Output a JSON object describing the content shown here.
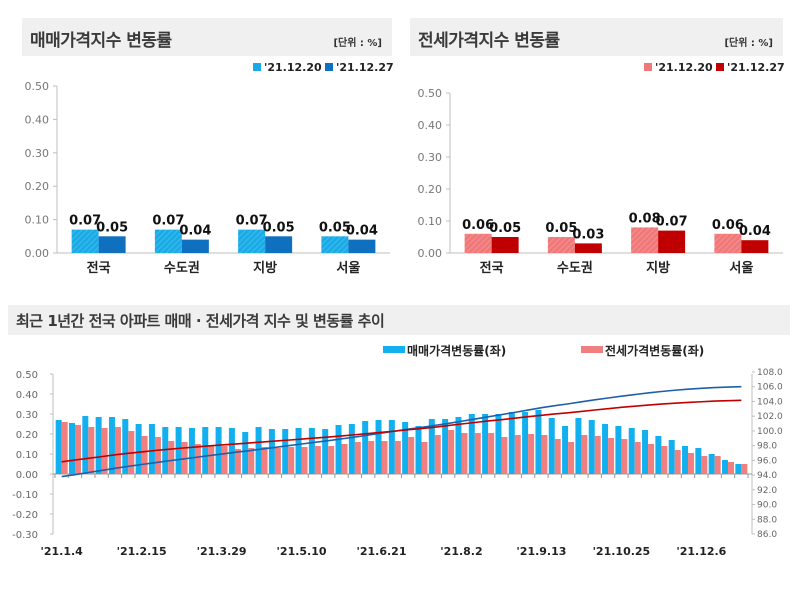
{
  "colors": {
    "sale_prev": "#1aabe6",
    "sale_curr": "#1070c0",
    "jeonse_prev": "#f07878",
    "jeonse_curr": "#c00000",
    "sale_bar": "#12b0ee",
    "jeonse_bar": "#f08080",
    "sale_index_line": "#1f5fa8",
    "jeonse_index_line": "#c00000"
  },
  "chart_data": [
    {
      "type": "bar",
      "title": "매매가격지수 변동률",
      "unit": "[단위 : %]",
      "categories": [
        "전국",
        "수도권",
        "지방",
        "서울"
      ],
      "series": [
        {
          "name": "'21.12.20",
          "values": [
            0.07,
            0.07,
            0.07,
            0.05
          ]
        },
        {
          "name": "'21.12.27",
          "values": [
            0.05,
            0.04,
            0.05,
            0.04
          ]
        }
      ],
      "ylim": [
        0,
        0.5
      ],
      "yticks": [
        "0.00",
        "0.10",
        "0.20",
        "0.30",
        "0.40",
        "0.50"
      ],
      "legend": "top-right",
      "grid": false
    },
    {
      "type": "bar",
      "title": "전세가격지수 변동률",
      "unit": "[단위 : %]",
      "categories": [
        "전국",
        "수도권",
        "지방",
        "서울"
      ],
      "series": [
        {
          "name": "'21.12.20",
          "values": [
            0.06,
            0.05,
            0.08,
            0.06
          ]
        },
        {
          "name": "'21.12.27",
          "values": [
            0.05,
            0.03,
            0.07,
            0.04
          ]
        }
      ],
      "ylim": [
        0,
        0.5
      ],
      "yticks": [
        "0.00",
        "0.10",
        "0.20",
        "0.30",
        "0.40",
        "0.50"
      ],
      "legend": "top-right",
      "grid": false
    },
    {
      "type": "bar+line",
      "title": "최근 1년간 전국 아파트 매매 · 전세가격 지수 및 변동률 추이",
      "xtick_labels": [
        "'21.1.4",
        "'21.2.15",
        "'21.3.29",
        "'21.5.10",
        "'21.6.21",
        "'21.8.2",
        "'21.9.13",
        "'21.10.25",
        "'21.12.6"
      ],
      "xtick_every_weeks": 6,
      "ylim_left": [
        -0.3,
        0.5
      ],
      "yticks_left": [
        "-0.30",
        "-0.20",
        "-0.10",
        "0.00",
        "0.10",
        "0.20",
        "0.30",
        "0.40",
        "0.50"
      ],
      "ylim_right": [
        86.0,
        108.0
      ],
      "yticks_right": [
        "86.0",
        "88.0",
        "90.0",
        "92.0",
        "94.0",
        "96.0",
        "98.0",
        "100.0",
        "102.0",
        "104.0",
        "106.0",
        "108.0"
      ],
      "legend": "top",
      "bar_series": [
        {
          "name": "매매가격변동률(좌)",
          "values": [
            0.27,
            0.255,
            0.29,
            0.285,
            0.285,
            0.275,
            0.25,
            0.25,
            0.235,
            0.235,
            0.23,
            0.235,
            0.235,
            0.23,
            0.21,
            0.235,
            0.225,
            0.225,
            0.23,
            0.23,
            0.225,
            0.245,
            0.25,
            0.265,
            0.27,
            0.27,
            0.26,
            0.24,
            0.275,
            0.275,
            0.285,
            0.3,
            0.3,
            0.3,
            0.31,
            0.31,
            0.32,
            0.28,
            0.24,
            0.28,
            0.27,
            0.25,
            0.24,
            0.23,
            0.22,
            0.19,
            0.17,
            0.14,
            0.13,
            0.1,
            0.07,
            0.05
          ]
        },
        {
          "name": "전세가격변동률(좌)",
          "values": [
            0.26,
            0.245,
            0.235,
            0.23,
            0.235,
            0.215,
            0.19,
            0.185,
            0.165,
            0.16,
            0.15,
            0.145,
            0.14,
            0.125,
            0.13,
            0.135,
            0.13,
            0.135,
            0.135,
            0.14,
            0.14,
            0.15,
            0.16,
            0.165,
            0.165,
            0.165,
            0.185,
            0.16,
            0.195,
            0.22,
            0.205,
            0.205,
            0.205,
            0.185,
            0.195,
            0.2,
            0.195,
            0.175,
            0.16,
            0.195,
            0.19,
            0.18,
            0.175,
            0.16,
            0.15,
            0.14,
            0.12,
            0.105,
            0.09,
            0.09,
            0.06,
            0.05
          ]
        }
      ],
      "line_series": [
        {
          "values": [
            93.8,
            94.06,
            94.35,
            94.63,
            94.92,
            95.19,
            95.44,
            95.69,
            95.93,
            96.16,
            96.39,
            96.63,
            96.86,
            97.09,
            97.3,
            97.54,
            97.76,
            97.99,
            98.22,
            98.45,
            98.67,
            98.92,
            99.17,
            99.43,
            99.7,
            99.97,
            100.23,
            100.47,
            100.75,
            101.02,
            101.31,
            101.61,
            101.91,
            102.21,
            102.52,
            102.83,
            103.15,
            103.43,
            103.67,
            103.95,
            104.22,
            104.47,
            104.71,
            104.94,
            105.16,
            105.35,
            105.52,
            105.66,
            105.79,
            105.89,
            105.96,
            106.01
          ]
        },
        {
          "values": [
            95.8,
            96.05,
            96.28,
            96.51,
            96.75,
            96.96,
            97.15,
            97.34,
            97.5,
            97.66,
            97.81,
            97.96,
            98.1,
            98.22,
            98.35,
            98.49,
            98.62,
            98.75,
            98.89,
            99.03,
            99.17,
            99.32,
            99.48,
            99.64,
            99.81,
            99.97,
            100.16,
            100.32,
            100.51,
            100.73,
            100.94,
            101.14,
            101.35,
            101.53,
            101.73,
            101.93,
            102.12,
            102.3,
            102.46,
            102.65,
            102.84,
            103.02,
            103.2,
            103.36,
            103.51,
            103.65,
            103.77,
            103.87,
            103.96,
            104.05,
            104.11,
            104.16
          ]
        }
      ]
    }
  ]
}
